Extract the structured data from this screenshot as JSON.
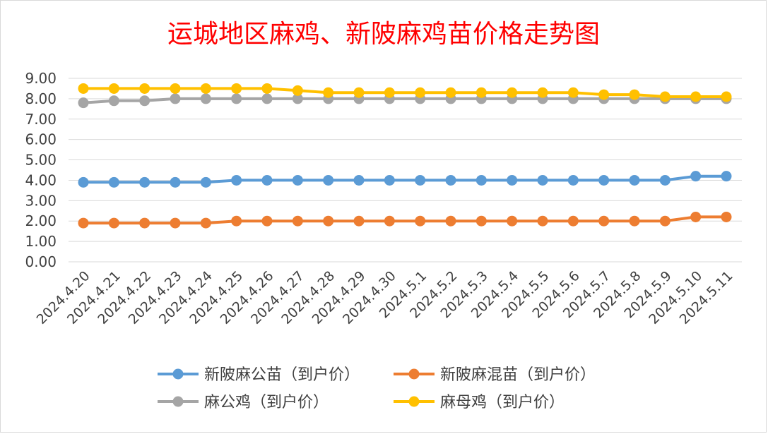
{
  "chart_data": {
    "type": "line",
    "title": "运城地区麻鸡、新陂麻鸡苗价格走势图",
    "xlabel": "",
    "ylabel": "",
    "ylim": [
      0,
      9
    ],
    "y_ticks": [
      "0.00",
      "1.00",
      "2.00",
      "3.00",
      "4.00",
      "5.00",
      "6.00",
      "7.00",
      "8.00",
      "9.00"
    ],
    "grid": true,
    "legend_position": "bottom",
    "categories": [
      "2024.4.20",
      "2024.4.21",
      "2024.4.22",
      "2024.4.23",
      "2024.4.24",
      "2024.4.25",
      "2024.4.26",
      "2024.4.27",
      "2024.4.28",
      "2024.4.29",
      "2024.4.30",
      "2024.5.1",
      "2024.5.2",
      "2024.5.3",
      "2024.5.4",
      "2024.5.5",
      "2024.5.6",
      "2024.5.7",
      "2024.5.8",
      "2024.5.9",
      "2024.5.10",
      "2024.5.11"
    ],
    "series": [
      {
        "name": "新陂麻公苗（到户价）",
        "color": "#5b9bd5",
        "values": [
          3.9,
          3.9,
          3.9,
          3.9,
          3.9,
          4.0,
          4.0,
          4.0,
          4.0,
          4.0,
          4.0,
          4.0,
          4.0,
          4.0,
          4.0,
          4.0,
          4.0,
          4.0,
          4.0,
          4.0,
          4.2,
          4.2
        ]
      },
      {
        "name": "新陂麻混苗（到户价）",
        "color": "#ed7d31",
        "values": [
          1.9,
          1.9,
          1.9,
          1.9,
          1.9,
          2.0,
          2.0,
          2.0,
          2.0,
          2.0,
          2.0,
          2.0,
          2.0,
          2.0,
          2.0,
          2.0,
          2.0,
          2.0,
          2.0,
          2.0,
          2.2,
          2.2
        ]
      },
      {
        "name": "麻公鸡（到户价）",
        "color": "#a5a5a5",
        "values": [
          7.8,
          7.9,
          7.9,
          8.0,
          8.0,
          8.0,
          8.0,
          8.0,
          8.0,
          8.0,
          8.0,
          8.0,
          8.0,
          8.0,
          8.0,
          8.0,
          8.0,
          8.0,
          8.0,
          8.0,
          8.0,
          8.0
        ]
      },
      {
        "name": "麻母鸡（到户价）",
        "color": "#ffc000",
        "values": [
          8.5,
          8.5,
          8.5,
          8.5,
          8.5,
          8.5,
          8.5,
          8.4,
          8.3,
          8.3,
          8.3,
          8.3,
          8.3,
          8.3,
          8.3,
          8.3,
          8.3,
          8.2,
          8.2,
          8.1,
          8.1,
          8.1
        ]
      }
    ]
  }
}
